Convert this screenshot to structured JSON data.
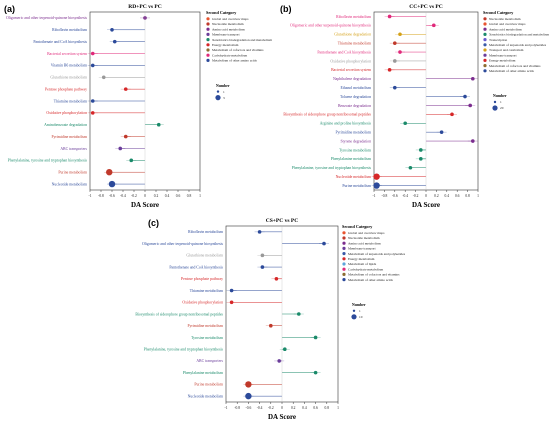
{
  "colors": {
    "Global and overview maps": "#e8542f",
    "Nucleotide metabolism": "#c0392b",
    "Amino acid metabolism": "#7b2d8e",
    "Membrane transport": "#6a3d9a",
    "Xenobiotics biodegradation and metabolism": "#1a8a6a",
    "Energy metabolism": "#d62728",
    "Metabolism of cofactors and vitamins": "#8c6d31",
    "Carbohydrate metabolism": "#e0297a",
    "Metabolism of other amino acids": "#2c4a9a",
    "Transcription": "#6a5acd",
    "Metabolism of terpenoids and polyketides": "#3a5aa8",
    "Transport and catabolism": "#d4a017",
    "Translation": "#555555",
    "Metabolism of lipids": "#5da5da",
    "Lipid metabolism": "#66aa55",
    "Glycan": "#999999"
  },
  "chart_data": [
    {
      "type": "scatter",
      "panel_label": "(a)",
      "title": "RD+PC vs PC",
      "xlabel": "DA Score",
      "xlim": [
        -1,
        1
      ],
      "xticks": [
        "-1",
        "-0.8",
        "-0.6",
        "-0.4",
        "-0.2",
        "0",
        "0.2",
        "0.4",
        "0.6",
        "0.8",
        "1"
      ],
      "categories": [
        "Oligomeric and other terpenoid-quinone biosynthesis",
        "Riboflavin metabolism",
        "Pantothenate and CoA biosynthesis",
        "Bacterial secretion system",
        "Vitamin B6 metabolism",
        "Glutathione metabolism",
        "Pentose phosphate pathway",
        "Thiamine metabolism",
        "Oxidative phosphorylation",
        "Aminobenzoate degradation",
        "Pyrimidine metabolism",
        "ABC transporters",
        "Phenylalanine, tyrosine and tryptophan biosynthesis",
        "Purine metabolism",
        "Nucleotide metabolism"
      ],
      "label_colors": [
        "#7b2d8e",
        "#2c4a9a",
        "#2c4a9a",
        "#e0297a",
        "#2c4a9a",
        "#999999",
        "#d62728",
        "#2c4a9a",
        "#d62728",
        "#1a8a6a",
        "#c0392b",
        "#6a3d9a",
        "#1a8a6a",
        "#c0392b",
        "#2c4a9a"
      ],
      "values": [
        0,
        -0.6,
        -0.55,
        -0.95,
        -0.95,
        -0.75,
        -0.35,
        -0.95,
        -0.95,
        0.25,
        -0.35,
        -0.45,
        -0.25,
        -0.65,
        -0.6
      ],
      "sizes": [
        1,
        1,
        1,
        1,
        1,
        1,
        1,
        1,
        1,
        1,
        1,
        1,
        1,
        2,
        2
      ],
      "legend_title": "Second Category",
      "legend": [
        "Global and overview maps",
        "Nucleotide metabolism",
        "Amino acid metabolism",
        "Membrane transport",
        "Xenobiotics biodegradation and metabolism",
        "Energy metabolism",
        "Metabolism of cofactors and vitamins",
        "Carbohydrate metabolism",
        "Metabolism of other amino acids"
      ],
      "size_title": "Number",
      "size_entries": [
        "1",
        "3"
      ]
    },
    {
      "type": "scatter",
      "panel_label": "(b)",
      "title": "CC+PC vs PC",
      "xlabel": "DA Score",
      "xlim": [
        -1,
        1
      ],
      "xticks": [
        "-1",
        "-0.8",
        "-0.6",
        "-0.4",
        "-0.2",
        "0",
        "0.2",
        "0.4",
        "0.6",
        "0.8",
        "1"
      ],
      "categories": [
        "Riboflavin metabolism",
        "Oligomeric and other terpenoid-quinone biosynthesis",
        "Glutathione degradation",
        "Thiamine metabolism",
        "Pantothenate and CoA biosynthesis",
        "Oxidative phosphorylation",
        "Bacterial secretion system",
        "Naphthalene degradation",
        "Ethanol metabolism",
        "Toluene degradation",
        "Benzoate degradation",
        "Biosynthesis of siderophore group nonribosomal peptides",
        "Arginine and proline biosynthesis",
        "Pyrimidine metabolism",
        "Styrene degradation",
        "Tyrosine metabolism",
        "Phenylalanine metabolism",
        "Phenylalanine, tyrosine and tryptophan biosynthesis",
        "Nucleotide metabolism",
        "Purine metabolism"
      ],
      "label_colors": [
        "#e0297a",
        "#e0297a",
        "#d4a017",
        "#c0392b",
        "#e0297a",
        "#999999",
        "#d62728",
        "#7b2d8e",
        "#2c4a9a",
        "#2c4a9a",
        "#7b2d8e",
        "#d62728",
        "#1a8a6a",
        "#2c4a9a",
        "#7b2d8e",
        "#1a8a6a",
        "#1a8a6a",
        "#1a8a6a",
        "#d62728",
        "#2c4a9a"
      ],
      "values": [
        -0.7,
        0.15,
        -0.5,
        -0.6,
        -0.5,
        -0.6,
        -0.7,
        0.9,
        -0.6,
        0.75,
        0.85,
        0.5,
        -0.4,
        0.3,
        0.9,
        -0.1,
        -0.1,
        -0.3,
        -0.95,
        -0.95
      ],
      "sizes": [
        1,
        1,
        1,
        1,
        1,
        1,
        1,
        1,
        1,
        1,
        1,
        1,
        1,
        1,
        1,
        1,
        1,
        1,
        2,
        2
      ],
      "legend_title": "Second Category",
      "legend": [
        "Nucleotide metabolism",
        "Global and overview maps",
        "Amino acid metabolism",
        "Xenobiotics biodegradation and metabolism",
        "Transcription",
        "Metabolism of terpenoids and polyketides",
        "Transport and catabolism",
        "Membrane transport",
        "Energy metabolism",
        "Metabolism of cofactors and vitamins",
        "Metabolism of other amino acids"
      ],
      "size_title": "Number",
      "size_entries": [
        "1",
        "20"
      ]
    },
    {
      "type": "scatter",
      "panel_label": "(c)",
      "title": "CS+PC vs PC",
      "xlabel": "DA Score",
      "xlim": [
        -1,
        1
      ],
      "xticks": [
        "-1",
        "-0.8",
        "-0.6",
        "-0.4",
        "-0.2",
        "0",
        "0.2",
        "0.4",
        "0.6",
        "0.8",
        "1"
      ],
      "categories": [
        "Riboflavin metabolism",
        "Oligomeric and other terpenoid-quinone biosynthesis",
        "Glutathione metabolism",
        "Pantothenate and CoA biosynthesis",
        "Pentose phosphate pathway",
        "Thiamine metabolism",
        "Oxidative phosphorylation",
        "Biosynthesis of siderophore group nonribosomal peptides",
        "Pyrimidine metabolism",
        "Tyrosine metabolism",
        "Phenylalanine, tyrosine and tryptophan biosynthesis",
        "ABC transporters",
        "Phenylalanine metabolism",
        "Purine metabolism",
        "Nucleotide metabolism"
      ],
      "label_colors": [
        "#2c4a9a",
        "#2c4a9a",
        "#999999",
        "#2c4a9a",
        "#d62728",
        "#2c4a9a",
        "#d62728",
        "#1a8a6a",
        "#c0392b",
        "#1a8a6a",
        "#1a8a6a",
        "#6a3d9a",
        "#1a8a6a",
        "#c0392b",
        "#2c4a9a"
      ],
      "values": [
        -0.4,
        0.75,
        -0.35,
        -0.35,
        -0.1,
        -0.9,
        -0.9,
        0.3,
        -0.2,
        0.6,
        0.05,
        -0.05,
        0.6,
        -0.6,
        -0.6
      ],
      "sizes": [
        1,
        1,
        1,
        1,
        1,
        1,
        1,
        1,
        1,
        1,
        1,
        1,
        1,
        2,
        2
      ],
      "legend_title": "Second Category",
      "legend": [
        "Global and overview maps",
        "Nucleotide metabolism",
        "Amino acid metabolism",
        "Membrane transport",
        "Metabolism of terpenoids and polyketides",
        "Energy metabolism",
        "Metabolism of lipids",
        "Carbohydrate metabolism",
        "Metabolism of cofactors and vitamins",
        "Metabolism of other amino acids"
      ],
      "size_title": "Number",
      "size_entries": [
        "1",
        "10"
      ]
    }
  ]
}
